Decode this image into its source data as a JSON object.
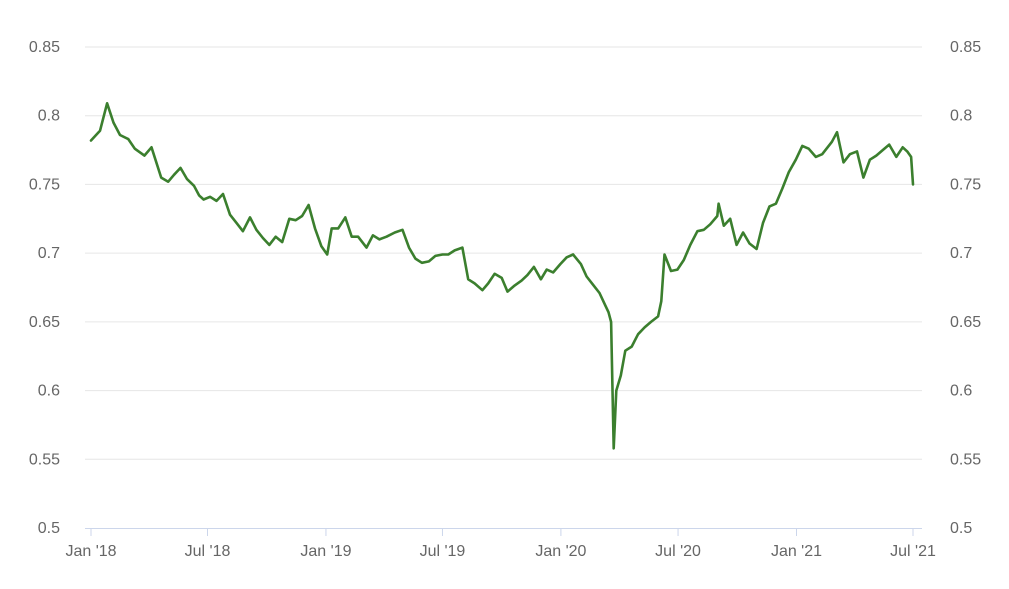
{
  "chart_data": {
    "type": "line",
    "title": "",
    "xlabel": "",
    "ylabel": "",
    "x_tick_labels": [
      "Jan '18",
      "Jul '18",
      "Jan '19",
      "Jul '19",
      "Jan '20",
      "Jul '20",
      "Jan '21",
      "Jul '21"
    ],
    "y_tick_labels": [
      "0.5",
      "0.55",
      "0.6",
      "0.65",
      "0.7",
      "0.75",
      "0.8",
      "0.85"
    ],
    "ylim": [
      0.5,
      0.85
    ],
    "xlim": [
      "2018-01-01",
      "2021-07-01"
    ],
    "grid": "horizontal",
    "dual_y_axis": true,
    "colors": {
      "series": "#3b7f2e",
      "grid": "#e6e6e6",
      "axis": "#ccd6eb",
      "text": "#666666"
    },
    "series": [
      {
        "x": [
          "2018-01-01",
          "2018-01-15",
          "2018-01-26",
          "2018-02-05",
          "2018-02-15",
          "2018-02-28",
          "2018-03-10",
          "2018-03-25",
          "2018-04-05",
          "2018-04-20",
          "2018-05-01",
          "2018-05-10",
          "2018-05-20",
          "2018-05-30",
          "2018-06-10",
          "2018-06-18",
          "2018-06-25",
          "2018-07-05",
          "2018-07-15",
          "2018-07-25",
          "2018-08-05",
          "2018-08-15",
          "2018-08-25",
          "2018-09-05",
          "2018-09-15",
          "2018-09-25",
          "2018-10-05",
          "2018-10-15",
          "2018-10-25",
          "2018-11-05",
          "2018-11-15",
          "2018-11-25",
          "2018-12-05",
          "2018-12-15",
          "2018-12-25",
          "2019-01-03",
          "2019-01-10",
          "2019-01-20",
          "2019-01-31",
          "2019-02-10",
          "2019-02-20",
          "2019-03-05",
          "2019-03-15",
          "2019-03-25",
          "2019-04-05",
          "2019-04-18",
          "2019-04-30",
          "2019-05-10",
          "2019-05-20",
          "2019-05-30",
          "2019-06-10",
          "2019-06-20",
          "2019-07-01",
          "2019-07-10",
          "2019-07-20",
          "2019-08-01",
          "2019-08-10",
          "2019-08-20",
          "2019-09-01",
          "2019-09-10",
          "2019-09-20",
          "2019-10-01",
          "2019-10-10",
          "2019-10-20",
          "2019-11-01",
          "2019-11-10",
          "2019-11-20",
          "2019-12-01",
          "2019-12-10",
          "2019-12-20",
          "2019-12-31",
          "2020-01-10",
          "2020-01-20",
          "2020-02-01",
          "2020-02-10",
          "2020-02-20",
          "2020-03-01",
          "2020-03-10",
          "2020-03-15",
          "2020-03-19",
          "2020-03-23",
          "2020-03-27",
          "2020-04-03",
          "2020-04-10",
          "2020-04-20",
          "2020-04-30",
          "2020-05-10",
          "2020-05-20",
          "2020-05-31",
          "2020-06-05",
          "2020-06-10",
          "2020-06-20",
          "2020-06-30",
          "2020-07-10",
          "2020-07-20",
          "2020-07-31",
          "2020-08-10",
          "2020-08-20",
          "2020-08-31",
          "2020-09-02",
          "2020-09-10",
          "2020-09-20",
          "2020-09-30",
          "2020-10-10",
          "2020-10-20",
          "2020-10-31",
          "2020-11-10",
          "2020-11-20",
          "2020-11-30",
          "2020-12-10",
          "2020-12-20",
          "2020-12-31",
          "2021-01-10",
          "2021-01-20",
          "2021-01-31",
          "2021-02-10",
          "2021-02-25",
          "2021-03-05",
          "2021-03-15",
          "2021-03-25",
          "2021-04-05",
          "2021-04-15",
          "2021-04-25",
          "2021-05-05",
          "2021-05-15",
          "2021-05-25",
          "2021-06-05",
          "2021-06-15",
          "2021-06-22",
          "2021-06-28",
          "2021-07-01"
        ],
        "values": [
          0.782,
          0.789,
          0.809,
          0.795,
          0.786,
          0.783,
          0.776,
          0.771,
          0.777,
          0.755,
          0.752,
          0.757,
          0.762,
          0.754,
          0.749,
          0.742,
          0.739,
          0.741,
          0.738,
          0.743,
          0.728,
          0.722,
          0.716,
          0.726,
          0.717,
          0.711,
          0.706,
          0.712,
          0.708,
          0.725,
          0.724,
          0.727,
          0.735,
          0.718,
          0.705,
          0.699,
          0.718,
          0.718,
          0.726,
          0.712,
          0.712,
          0.704,
          0.713,
          0.71,
          0.712,
          0.715,
          0.717,
          0.704,
          0.696,
          0.693,
          0.694,
          0.698,
          0.699,
          0.699,
          0.702,
          0.704,
          0.681,
          0.678,
          0.673,
          0.678,
          0.685,
          0.682,
          0.672,
          0.676,
          0.68,
          0.684,
          0.69,
          0.681,
          0.688,
          0.686,
          0.692,
          0.697,
          0.699,
          0.692,
          0.683,
          0.677,
          0.671,
          0.662,
          0.657,
          0.65,
          0.558,
          0.6,
          0.611,
          0.629,
          0.632,
          0.641,
          0.646,
          0.65,
          0.654,
          0.665,
          0.699,
          0.687,
          0.688,
          0.695,
          0.706,
          0.716,
          0.717,
          0.721,
          0.727,
          0.736,
          0.72,
          0.725,
          0.706,
          0.715,
          0.707,
          0.703,
          0.722,
          0.734,
          0.736,
          0.747,
          0.759,
          0.768,
          0.778,
          0.776,
          0.77,
          0.772,
          0.781,
          0.788,
          0.766,
          0.772,
          0.774,
          0.755,
          0.768,
          0.771,
          0.775,
          0.779,
          0.77,
          0.777,
          0.774,
          0.77,
          0.75
        ]
      }
    ]
  }
}
